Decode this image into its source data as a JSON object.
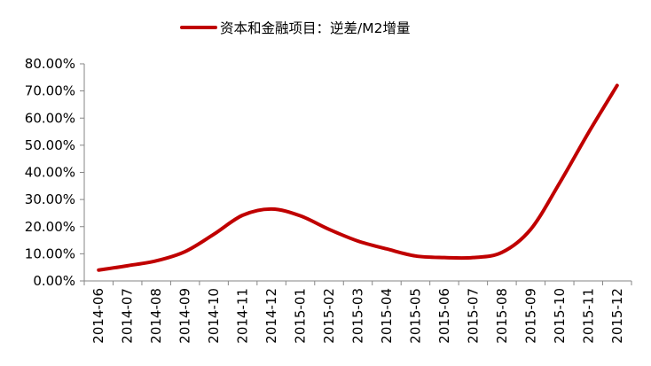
{
  "chart_data": {
    "type": "line",
    "title": "",
    "xlabel": "",
    "ylabel": "",
    "legend_position": "top-center",
    "grid": false,
    "ylim": [
      0,
      80
    ],
    "y_tick_values": [
      0,
      10,
      20,
      30,
      40,
      50,
      60,
      70,
      80
    ],
    "y_tick_labels": [
      "0.00%",
      "10.00%",
      "20.00%",
      "30.00%",
      "40.00%",
      "50.00%",
      "60.00%",
      "70.00%",
      "80.00%"
    ],
    "categories": [
      "2014-06",
      "2014-07",
      "2014-08",
      "2014-09",
      "2014-10",
      "2014-11",
      "2014-12",
      "2015-01",
      "2015-02",
      "2015-03",
      "2015-04",
      "2015-05",
      "2015-06",
      "2015-07",
      "2015-08",
      "2015-09",
      "2015-10",
      "2015-11",
      "2015-12"
    ],
    "series": [
      {
        "name": "资本和金融项目：逆差/M2增量",
        "color": "#c00000",
        "smooth": true,
        "values": [
          4.0,
          5.6,
          7.4,
          10.8,
          17.2,
          24.2,
          26.5,
          24.0,
          19.0,
          14.7,
          11.8,
          9.2,
          8.6,
          8.6,
          10.5,
          19.0,
          36.0,
          54.5,
          72.0
        ]
      }
    ]
  }
}
